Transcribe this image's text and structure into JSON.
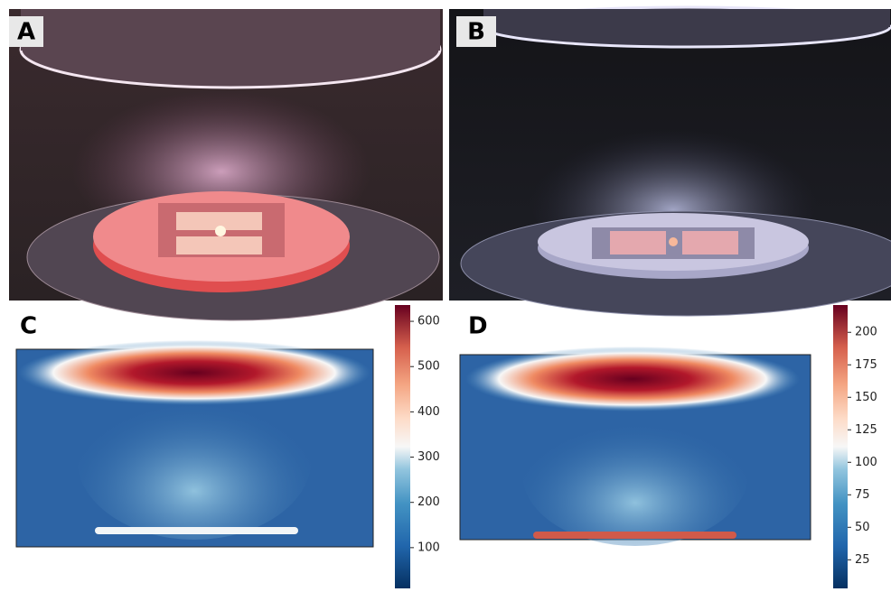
{
  "panels": [
    {
      "label": "A"
    },
    {
      "label": "B"
    },
    {
      "label": "C",
      "colorbar": {
        "lim": [
          10,
          636
        ],
        "ticks": [
          100,
          200,
          300,
          400,
          500,
          600
        ]
      }
    },
    {
      "label": "D",
      "colorbar": {
        "lim": [
          3,
          221
        ],
        "ticks": [
          25,
          50,
          75,
          100,
          125,
          150,
          175,
          200
        ]
      }
    }
  ]
}
